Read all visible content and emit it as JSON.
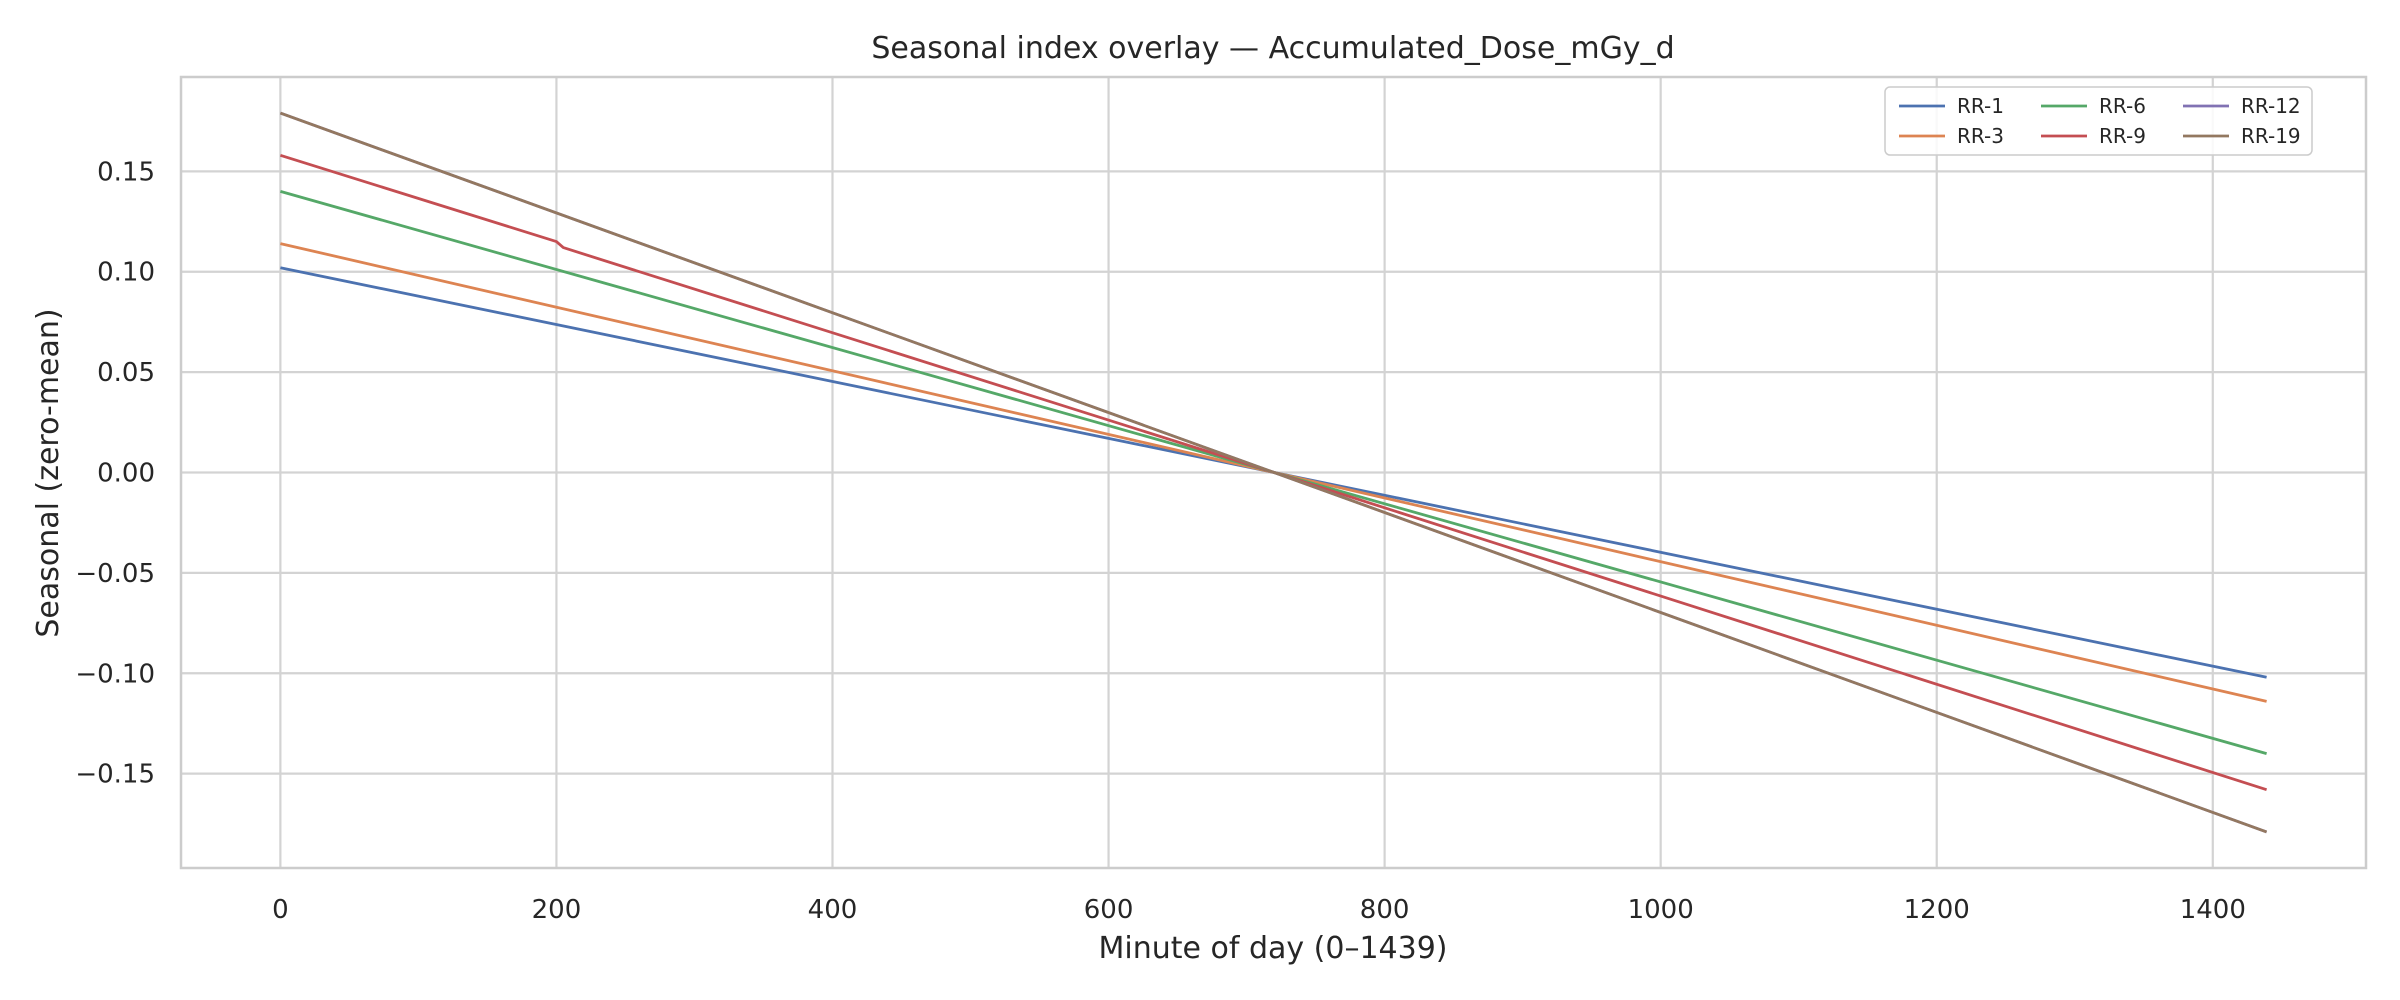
{
  "chart_data": {
    "type": "line",
    "title": "Seasonal index overlay — Accumulated_Dose_mGy_d",
    "xlabel": "Minute of day (0–1439)",
    "ylabel": "Seasonal (zero-mean)",
    "xlim": [
      -72,
      1511
    ],
    "ylim": [
      -0.197,
      0.197
    ],
    "xticks": [
      0,
      200,
      400,
      600,
      800,
      1000,
      1200,
      1400
    ],
    "xtick_labels": [
      "0",
      "200",
      "400",
      "600",
      "800",
      "1000",
      "1200",
      "1400"
    ],
    "yticks": [
      -0.15,
      -0.1,
      -0.05,
      0.0,
      0.05,
      0.1,
      0.15
    ],
    "ytick_labels": [
      "−0.15",
      "−0.10",
      "−0.05",
      "0.00",
      "0.05",
      "0.10",
      "0.15"
    ],
    "grid": true,
    "legend": {
      "position": "top-right",
      "columns": 3
    },
    "series": [
      {
        "name": "RR-1",
        "color": "#4c72b0",
        "x": [
          0,
          720,
          1439
        ],
        "y": [
          0.102,
          0.0,
          -0.102
        ]
      },
      {
        "name": "RR-3",
        "color": "#dd8452",
        "x": [
          0,
          720,
          1439
        ],
        "y": [
          0.114,
          0.0,
          -0.114
        ]
      },
      {
        "name": "RR-6",
        "color": "#55a868",
        "x": [
          0,
          720,
          1439
        ],
        "y": [
          0.14,
          0.0,
          -0.14
        ]
      },
      {
        "name": "RR-9",
        "color": "#c44e52",
        "x": [
          0,
          200,
          205,
          720,
          1439
        ],
        "y": [
          0.158,
          0.115,
          0.112,
          0.0,
          -0.158
        ]
      },
      {
        "name": "RR-12",
        "color": "#8172b3",
        "x": [
          0,
          720,
          1439
        ],
        "y": [
          0.179,
          0.0,
          -0.179
        ]
      },
      {
        "name": "RR-19",
        "color": "#937860",
        "x": [
          0,
          720,
          1439
        ],
        "y": [
          0.179,
          0.0,
          -0.179
        ]
      }
    ]
  }
}
